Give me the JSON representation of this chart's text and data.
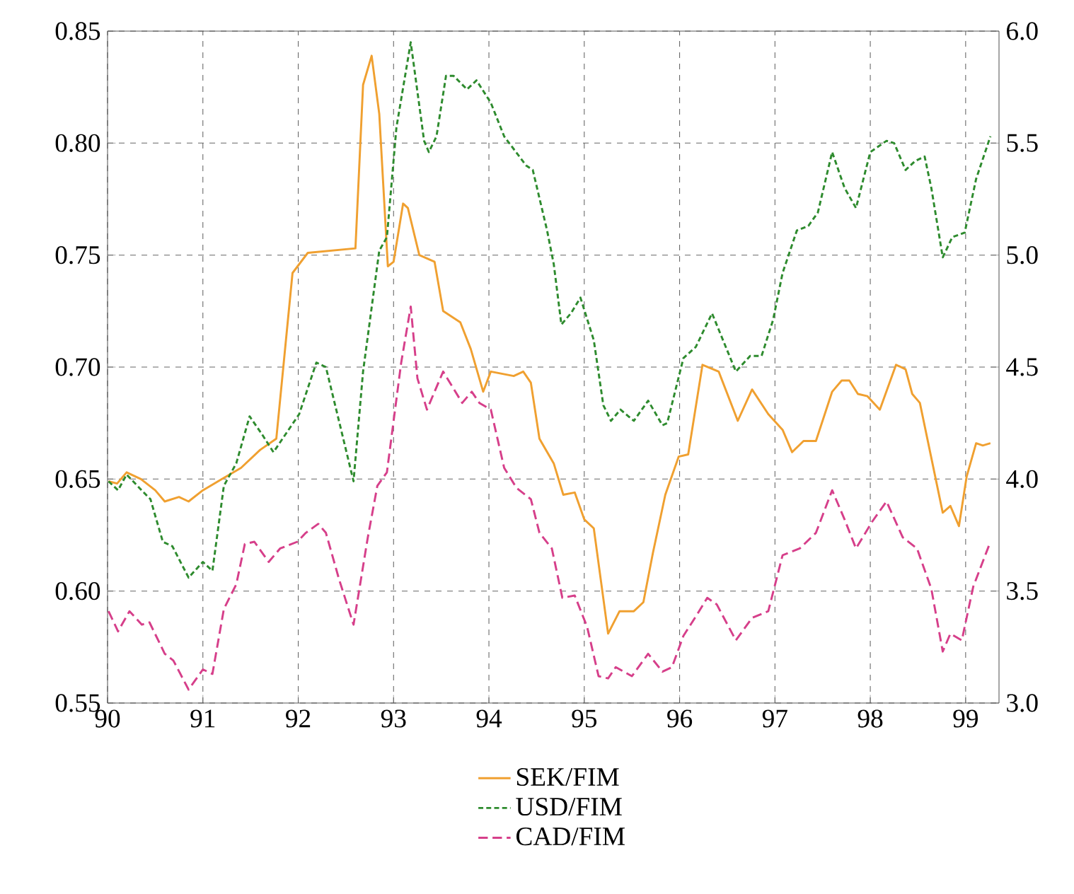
{
  "chart_data": {
    "type": "line",
    "xlim": [
      90,
      99.35
    ],
    "xticks": [
      90,
      91,
      92,
      93,
      94,
      95,
      96,
      97,
      98,
      99
    ],
    "ylim": [
      0.55,
      0.85
    ],
    "yticks": [
      0.55,
      {
        "value": 0.6,
        "label": "0.60"
      },
      0.65,
      {
        "value": 0.7,
        "label": "0.70"
      },
      0.75,
      {
        "value": 0.8,
        "label": "0.80"
      },
      0.85
    ],
    "y2lim": [
      3,
      6
    ],
    "y2ticks": [
      {
        "value": 3,
        "label": "3.0"
      },
      3.5,
      {
        "value": 4,
        "label": "4.0"
      },
      4.5,
      {
        "value": 5,
        "label": "5.0"
      },
      5.5,
      {
        "value": 6,
        "label": "6.0"
      }
    ],
    "grid": true,
    "legend": "bottom",
    "marker": "none",
    "series": [
      {
        "name": "SEK/FIM",
        "color": "#f0a030",
        "line_style": "solid",
        "x": [
          90.01,
          90.1,
          90.2,
          90.35,
          90.5,
          90.6,
          90.75,
          90.85,
          91.0,
          91.2,
          91.4,
          91.6,
          91.77,
          91.94,
          92.1,
          92.6,
          92.68,
          92.77,
          92.85,
          92.94,
          93.0,
          93.1,
          93.15,
          93.27,
          93.43,
          93.52,
          93.7,
          93.81,
          93.94,
          94.02,
          94.26,
          94.36,
          94.44,
          94.53,
          94.68,
          94.78,
          94.9,
          95.0,
          95.1,
          95.25,
          95.37,
          95.52,
          95.62,
          95.72,
          95.85,
          95.99,
          96.09,
          96.24,
          96.41,
          96.61,
          96.76,
          96.93,
          97.08,
          97.18,
          97.3,
          97.43,
          97.6,
          97.7,
          97.78,
          97.87,
          97.97,
          98.1,
          98.27,
          98.37,
          98.44,
          98.52,
          98.76,
          98.84,
          98.93,
          99.01,
          99.11,
          99.18,
          99.26
        ],
        "values": [
          0.649,
          0.648,
          0.653,
          0.65,
          0.645,
          0.64,
          0.642,
          0.64,
          0.645,
          0.65,
          0.655,
          0.663,
          0.668,
          0.742,
          0.751,
          0.753,
          0.826,
          0.839,
          0.813,
          0.745,
          0.747,
          0.773,
          0.771,
          0.75,
          0.747,
          0.725,
          0.72,
          0.708,
          0.689,
          0.698,
          0.696,
          0.698,
          0.693,
          0.668,
          0.657,
          0.643,
          0.644,
          0.632,
          0.628,
          0.581,
          0.591,
          0.591,
          0.595,
          0.617,
          0.643,
          0.66,
          0.661,
          0.701,
          0.698,
          0.676,
          0.69,
          0.679,
          0.672,
          0.662,
          0.667,
          0.667,
          0.689,
          0.694,
          0.694,
          0.688,
          0.687,
          0.681,
          0.701,
          0.699,
          0.688,
          0.684,
          0.635,
          0.638,
          0.629,
          0.651,
          0.666,
          0.665,
          0.666
        ]
      },
      {
        "name": "USD/FIM",
        "color": "#2e8b2e",
        "line_style": "dotted",
        "axis": "y2",
        "x": [
          90.01,
          90.11,
          90.2,
          90.38,
          90.45,
          90.58,
          90.68,
          90.85,
          91.0,
          91.1,
          91.22,
          91.35,
          91.49,
          91.62,
          91.74,
          92.01,
          92.19,
          92.29,
          92.41,
          92.58,
          92.68,
          92.85,
          92.93,
          93.03,
          93.18,
          93.32,
          93.37,
          93.45,
          93.55,
          93.63,
          93.77,
          93.87,
          94.02,
          94.16,
          94.39,
          94.46,
          94.61,
          94.68,
          94.76,
          94.86,
          94.96,
          95.1,
          95.2,
          95.28,
          95.38,
          95.52,
          95.67,
          95.82,
          95.87,
          96.04,
          96.17,
          96.34,
          96.59,
          96.74,
          96.86,
          96.98,
          97.08,
          97.23,
          97.35,
          97.45,
          97.6,
          97.73,
          97.85,
          98.0,
          98.17,
          98.25,
          98.37,
          98.47,
          98.57,
          98.64,
          98.76,
          98.86,
          98.99,
          99.11,
          99.26
        ],
        "values": [
          3.99,
          3.95,
          4.02,
          3.94,
          3.91,
          3.72,
          3.7,
          3.56,
          3.63,
          3.59,
          3.97,
          4.07,
          4.28,
          4.2,
          4.12,
          4.29,
          4.52,
          4.5,
          4.29,
          3.99,
          4.48,
          5.02,
          5.08,
          5.57,
          5.95,
          5.51,
          5.46,
          5.53,
          5.8,
          5.8,
          5.74,
          5.78,
          5.68,
          5.53,
          5.4,
          5.38,
          5.11,
          4.96,
          4.69,
          4.74,
          4.81,
          4.62,
          4.33,
          4.26,
          4.31,
          4.26,
          4.35,
          4.24,
          4.25,
          4.54,
          4.59,
          4.74,
          4.48,
          4.55,
          4.55,
          4.71,
          4.92,
          5.11,
          5.13,
          5.19,
          5.46,
          5.3,
          5.21,
          5.46,
          5.51,
          5.5,
          5.38,
          5.42,
          5.44,
          5.3,
          4.99,
          5.08,
          5.1,
          5.34,
          5.53
        ]
      },
      {
        "name": "CAD/FIM",
        "color": "#d63f8a",
        "line_style": "dashed",
        "axis": "y2",
        "x": [
          90.01,
          90.11,
          90.23,
          90.36,
          90.44,
          90.6,
          90.69,
          90.85,
          91.0,
          91.1,
          91.22,
          91.35,
          91.44,
          91.54,
          91.69,
          91.81,
          91.99,
          92.08,
          92.21,
          92.29,
          92.43,
          92.58,
          92.73,
          92.83,
          92.93,
          93.08,
          93.18,
          93.25,
          93.35,
          93.52,
          93.72,
          93.82,
          93.9,
          94.02,
          94.16,
          94.29,
          94.44,
          94.53,
          94.66,
          94.77,
          94.9,
          95.03,
          95.15,
          95.25,
          95.33,
          95.5,
          95.67,
          95.82,
          95.92,
          96.04,
          96.19,
          96.29,
          96.39,
          96.59,
          96.76,
          96.93,
          97.08,
          97.26,
          97.43,
          97.6,
          97.73,
          97.85,
          98.02,
          98.17,
          98.34,
          98.49,
          98.64,
          98.76,
          98.84,
          98.96,
          99.08,
          99.26
        ],
        "values": [
          3.41,
          3.32,
          3.41,
          3.35,
          3.36,
          3.22,
          3.19,
          3.06,
          3.15,
          3.13,
          3.42,
          3.53,
          3.71,
          3.72,
          3.63,
          3.69,
          3.72,
          3.76,
          3.8,
          3.76,
          3.55,
          3.35,
          3.74,
          3.97,
          4.03,
          4.52,
          4.77,
          4.45,
          4.31,
          4.48,
          4.34,
          4.39,
          4.34,
          4.31,
          4.05,
          3.96,
          3.91,
          3.76,
          3.69,
          3.47,
          3.48,
          3.34,
          3.12,
          3.11,
          3.16,
          3.12,
          3.22,
          3.14,
          3.16,
          3.3,
          3.4,
          3.47,
          3.44,
          3.28,
          3.38,
          3.41,
          3.66,
          3.69,
          3.76,
          3.95,
          3.82,
          3.69,
          3.81,
          3.9,
          3.74,
          3.69,
          3.51,
          3.23,
          3.31,
          3.28,
          3.52,
          3.72
        ]
      }
    ]
  }
}
